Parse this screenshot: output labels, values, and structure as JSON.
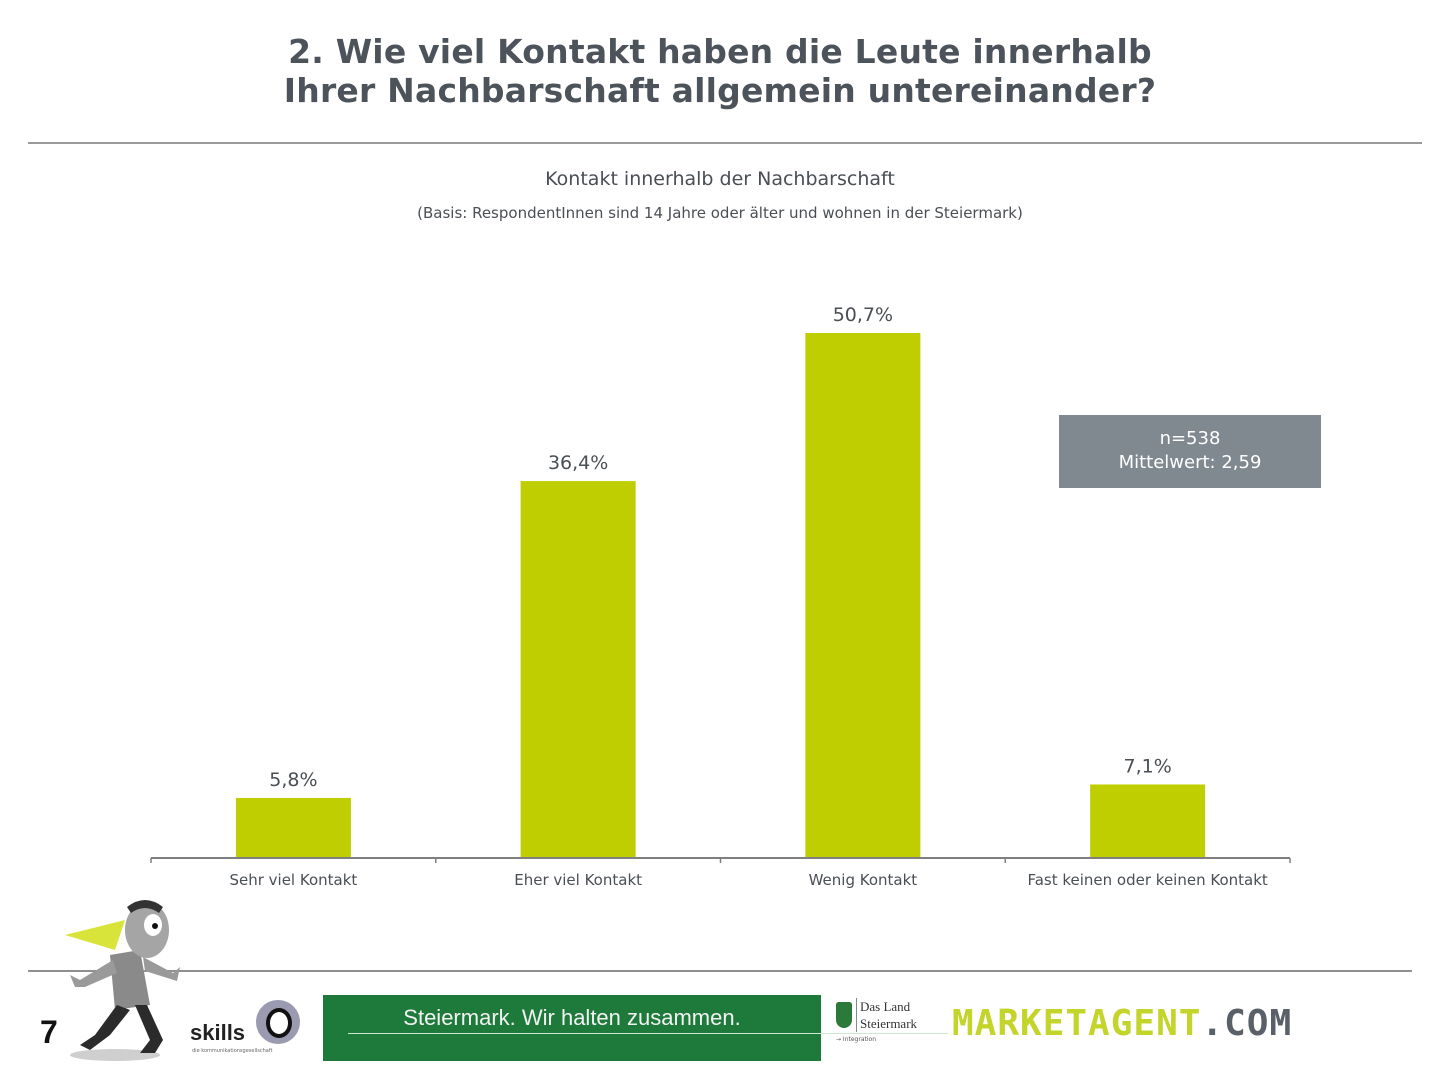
{
  "header": {
    "title_line1": "2. Wie viel Kontakt haben die Leute innerhalb",
    "title_line2": "Ihrer Nachbarschaft allgemein untereinander?"
  },
  "chart_data": {
    "type": "bar",
    "title": "Kontakt innerhalb der Nachbarschaft",
    "subtitle": "(Basis: RespondentInnen sind 14 Jahre oder älter und wohnen in der Steiermark)",
    "categories": [
      "Sehr viel Kontakt",
      "Eher viel Kontakt",
      "Wenig Kontakt",
      "Fast keinen oder keinen Kontakt"
    ],
    "values": [
      5.8,
      36.4,
      50.7,
      7.1
    ],
    "data_labels": [
      "5,8%",
      "36,4%",
      "50,7%",
      "7,1%"
    ],
    "unit": "%",
    "xlabel": "",
    "ylabel": "",
    "ylim": [
      0,
      50.7
    ],
    "grid": false,
    "legend": "none",
    "bar_color": "#bfce00",
    "axis_color": "#7f7f7f"
  },
  "stats_box": {
    "n_label": "n=538",
    "mean_label": "Mittelwert: 2,59",
    "background": "#808890"
  },
  "footer": {
    "page_number": "7",
    "skills_label": "skills",
    "skills_tagline": "die kommunikationsgesellschaft",
    "banner_text": "Steiermark. Wir halten zusammen.",
    "land_line1": "Das Land",
    "land_line2": "Steiermark",
    "land_sub": "→ Integration",
    "brand_main": "MARKETAGENT",
    "brand_suffix": ".COM"
  }
}
